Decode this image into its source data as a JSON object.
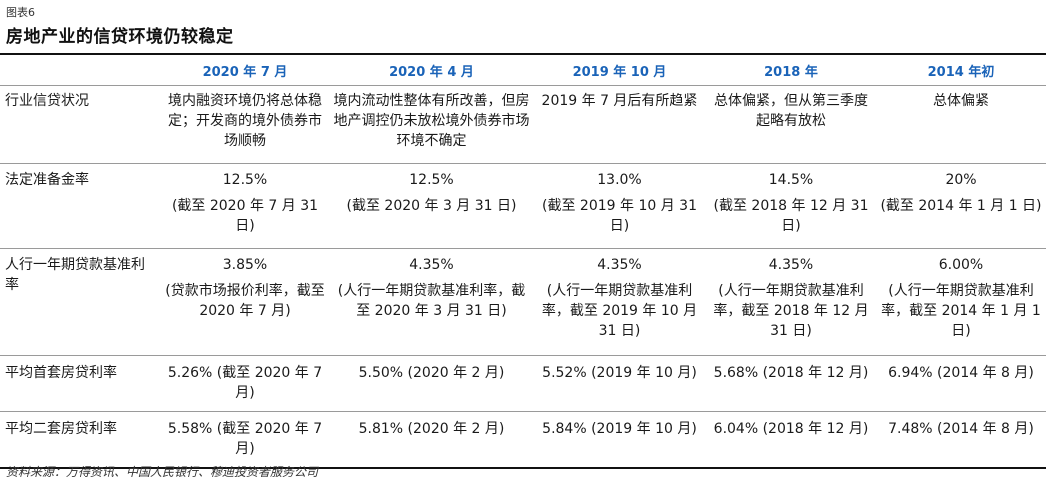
{
  "figure": {
    "label": "图表6",
    "title": "房地产业的信贷环境仍较稳定"
  },
  "table": {
    "columns": [
      "",
      "2020 年 7 月",
      "2020 年 4 月",
      "2019 年 10 月",
      "2018 年",
      "2014 年初"
    ],
    "rows": [
      {
        "label": "行业信贷状况",
        "cells": [
          {
            "value": "境内融资环境仍将总体稳定；开发商的境外债券市场顺畅",
            "sub": ""
          },
          {
            "value": "境内流动性整体有所改善，但房地产调控仍未放松境外债券市场环境不确定",
            "sub": ""
          },
          {
            "value": "2019 年 7 月后有所趋紧",
            "sub": ""
          },
          {
            "value": "总体偏紧，但从第三季度起略有放松",
            "sub": ""
          },
          {
            "value": "总体偏紧",
            "sub": ""
          }
        ]
      },
      {
        "label": "法定准备金率",
        "cells": [
          {
            "value": "12.5%",
            "sub": "(截至 2020 年 7 月 31 日)"
          },
          {
            "value": "12.5%",
            "sub": "(截至 2020 年 3 月 31 日)"
          },
          {
            "value": "13.0%",
            "sub": "(截至 2019 年 10 月 31 日)"
          },
          {
            "value": "14.5%",
            "sub": "(截至 2018 年 12 月 31 日)"
          },
          {
            "value": "20%",
            "sub": "(截至 2014 年 1 月 1 日)"
          }
        ]
      },
      {
        "label": "人行一年期贷款基准利率",
        "cells": [
          {
            "value": "3.85%",
            "sub": "(贷款市场报价利率，截至 2020 年 7 月)"
          },
          {
            "value": "4.35%",
            "sub": "(人行一年期贷款基准利率，截至 2020 年 3 月 31 日)"
          },
          {
            "value": "4.35%",
            "sub": "(人行一年期贷款基准利率，截至 2019 年 10 月 31 日)"
          },
          {
            "value": "4.35%",
            "sub": "(人行一年期贷款基准利率，截至 2018 年 12 月 31 日)"
          },
          {
            "value": "6.00%",
            "sub": "(人行一年期贷款基准利率，截至 2014 年 1 月 1 日)"
          }
        ]
      },
      {
        "label": "平均首套房贷利率",
        "cells": [
          {
            "value": "5.26% (截至 2020 年 7 月)",
            "sub": ""
          },
          {
            "value": "5.50% (2020 年 2 月)",
            "sub": ""
          },
          {
            "value": "5.52% (2019 年 10 月)",
            "sub": ""
          },
          {
            "value": "5.68% (2018 年 12 月)",
            "sub": ""
          },
          {
            "value": "6.94% (2014 年 8 月)",
            "sub": ""
          }
        ]
      },
      {
        "label": "平均二套房贷利率",
        "cells": [
          {
            "value": "5.58% (截至 2020 年 7 月)",
            "sub": ""
          },
          {
            "value": "5.81% (2020 年 2 月)",
            "sub": ""
          },
          {
            "value": "5.84% (2019 年 10 月)",
            "sub": ""
          },
          {
            "value": "6.04% (2018 年 12 月)",
            "sub": ""
          },
          {
            "value": "7.48% (2014 年 8 月)",
            "sub": ""
          }
        ]
      }
    ]
  },
  "source": "资料来源：万得资讯、中国人民银行、穆迪投资者服务公司",
  "colors": {
    "header_text": "#1a63b8",
    "rule": "#111111",
    "divider": "#9a9a9a"
  }
}
